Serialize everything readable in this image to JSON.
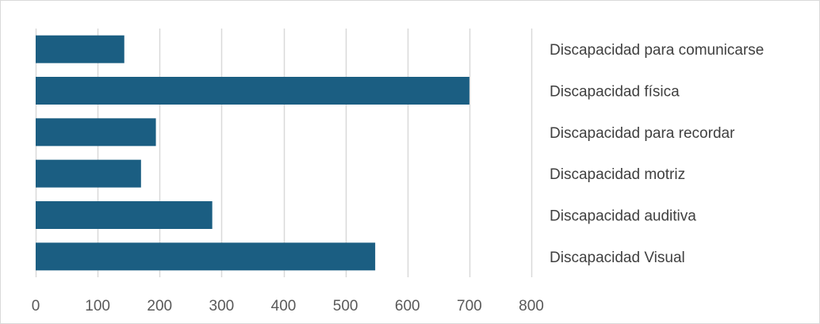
{
  "chart_data": {
    "type": "bar",
    "orientation": "horizontal",
    "title": "",
    "xlabel": "",
    "ylabel": "",
    "categories": [
      "Discapacidad para comunicarse",
      "Discapacidad física",
      "Discapacidad para recordar",
      "Discapacidad motriz",
      "Discapacidad auditiva",
      "Discapacidad Visual"
    ],
    "values": [
      143,
      700,
      194,
      170,
      285,
      548
    ],
    "xlim": [
      0,
      800
    ],
    "xticks": [
      "0",
      "100",
      "200",
      "300",
      "400",
      "500",
      "600",
      "700",
      "800"
    ],
    "grid": true,
    "legend": "none",
    "category_labels_position": "right",
    "colors": {
      "bar": "#1b5e82",
      "grid": "#d9d9d9",
      "tick_text": "#595959",
      "category_text": "#404040"
    }
  }
}
